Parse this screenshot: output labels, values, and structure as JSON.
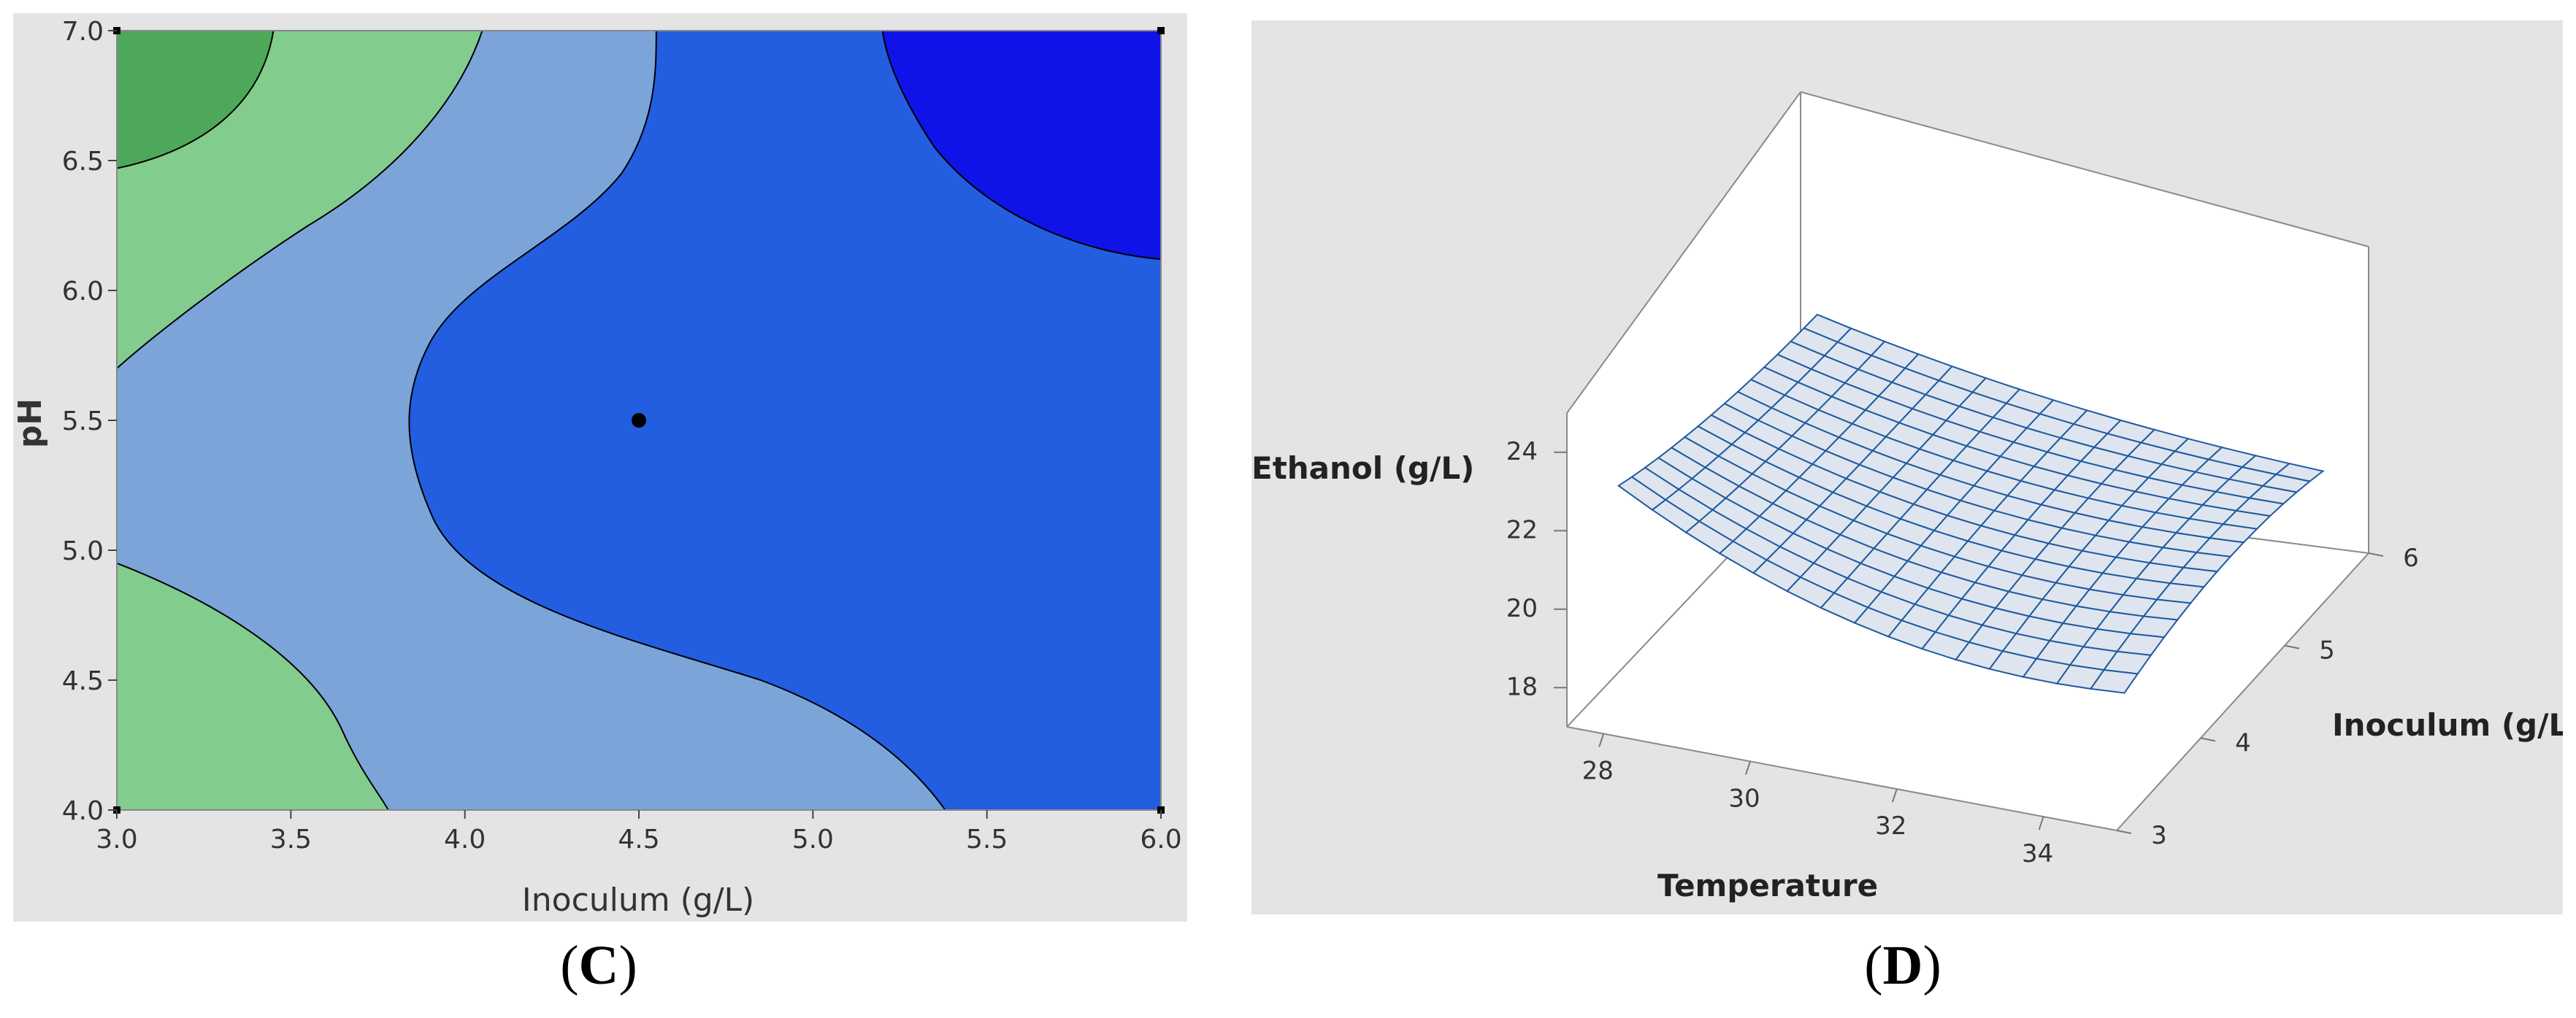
{
  "panels": [
    {
      "label": "C",
      "chart_data": {
        "type": "contour",
        "xlabel": "Inoculum (g/L)",
        "ylabel": "pH",
        "xlim": [
          3.0,
          6.0
        ],
        "ylim": [
          4.0,
          7.0
        ],
        "x_ticks": [
          "3.0",
          "3.5",
          "4.0",
          "4.5",
          "5.0",
          "5.5",
          "6.0"
        ],
        "y_ticks": [
          "4.0",
          "4.5",
          "5.0",
          "5.5",
          "6.0",
          "6.5",
          "7.0"
        ],
        "center_point": {
          "x": 4.5,
          "y": 5.5
        },
        "regions": [
          {
            "name": "region-1",
            "color": "#4ea85a",
            "contour": "upper-left corner, x<=3.45, y>=6.47"
          },
          {
            "name": "region-2",
            "color": "#82cc8d",
            "contour": "left band, boundary from (3.0,5.70) to (4.05,7.0); lower-left lobe boundary (3.0,4.95) to (3.78,4.0)"
          },
          {
            "name": "region-3",
            "color": "#7ba5d9",
            "contour": "middle band"
          },
          {
            "name": "region-4",
            "color": "#235de0",
            "contour": "right region, boundary nose at about x=3.85, y=5.5"
          },
          {
            "name": "region-5",
            "color": "#0f13e8",
            "contour": "upper-right corner, x>=5.2, y>=6.12"
          }
        ],
        "grid": false
      }
    },
    {
      "label": "D",
      "chart_data": {
        "type": "surface",
        "zlabel": "Ethanol (g/L)",
        "xlabel": "Temperature",
        "ylabel": "Inoculum (g/L)",
        "z_ticks": [
          "24",
          "22",
          "20",
          "18"
        ],
        "x_ticks": [
          "28",
          "30",
          "32",
          "34"
        ],
        "y_ticks": [
          "6",
          "5",
          "4",
          "3"
        ],
        "zlim": [
          17,
          25
        ],
        "xlim": [
          27.5,
          35
        ],
        "ylim": [
          3,
          6
        ],
        "surface_color": "#1e5aa0",
        "surface_fill": "#dfe5ee",
        "grid_lines": 15,
        "z_range_observed": [
          19.3,
          23.8
        ]
      }
    }
  ]
}
